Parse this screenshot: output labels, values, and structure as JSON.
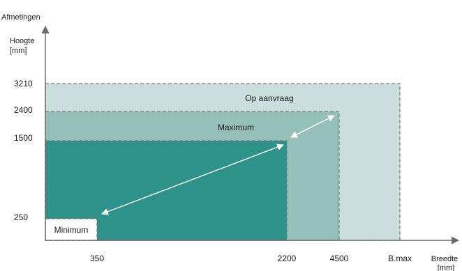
{
  "title": "Afmetingen",
  "y_axis": {
    "label_line1": "Hoogte",
    "label_line2": "[mm]",
    "ticks": [
      "3210",
      "2400",
      "1500",
      "250"
    ]
  },
  "x_axis": {
    "label_line1": "Breedte",
    "label_line2": "[mm]",
    "ticks": [
      "350",
      "2200",
      "4500",
      "B.max"
    ]
  },
  "zones": {
    "on_request": "Op aanvraag",
    "maximum": "Maximum",
    "minimum": "Minimum"
  },
  "colors": {
    "on_request": "#c9dedd",
    "maximum": "#95c0ba",
    "standard": "#2e928a",
    "minimum": "#ffffff",
    "axis": "#6a6a6a",
    "dashed_border": "#7a7a7a",
    "arrow": "#ffffff"
  }
}
